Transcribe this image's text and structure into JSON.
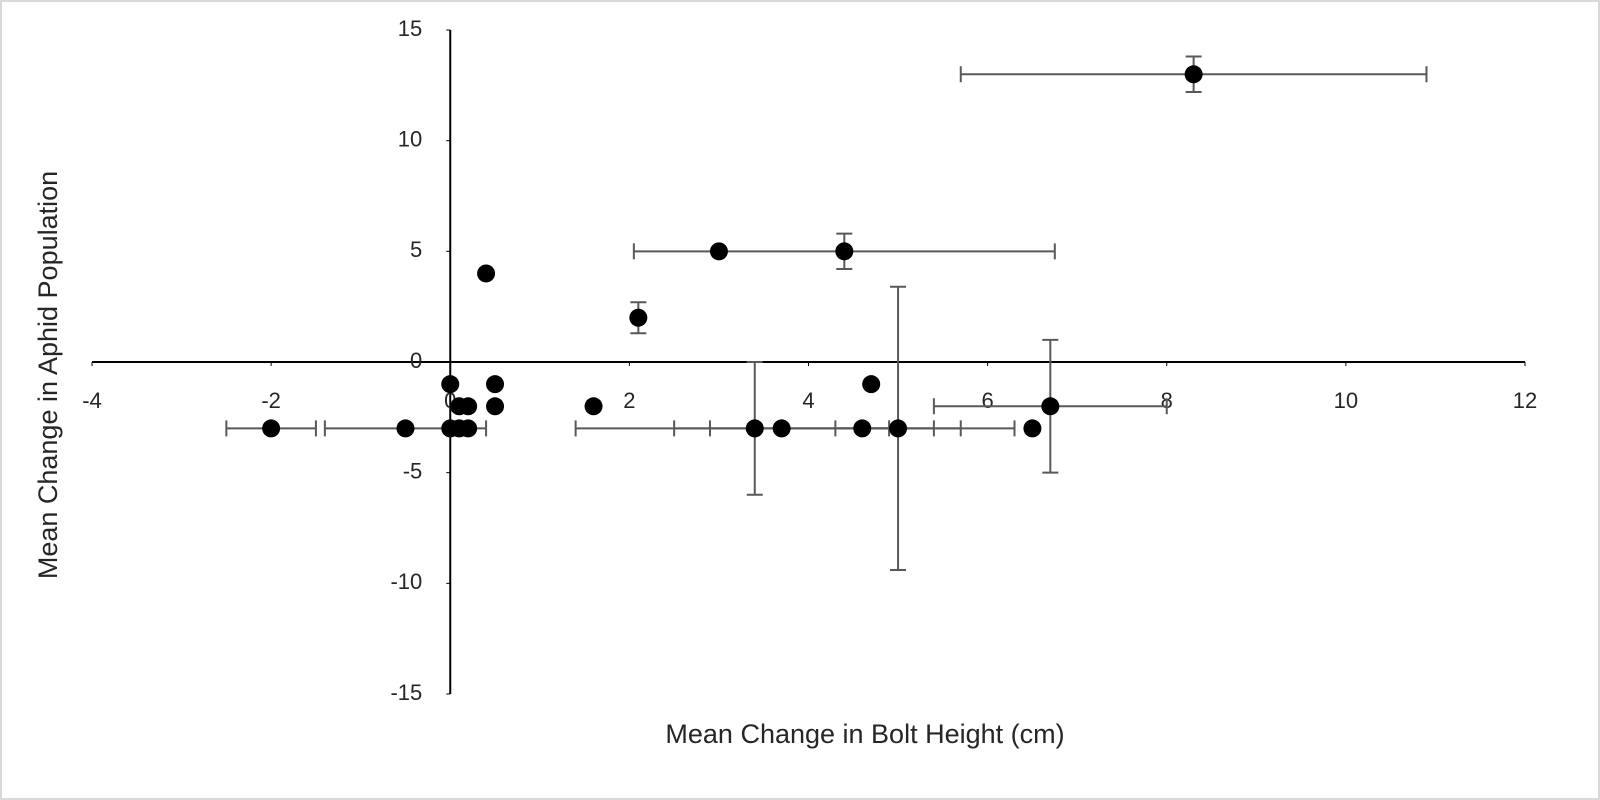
{
  "chart_data": {
    "type": "scatter",
    "x_label": "Mean Change in Bolt Height (cm)",
    "y_label": "Mean Change in Aphid Population",
    "xlim": [
      -4,
      12
    ],
    "xticks": [
      -4,
      -2,
      0,
      2,
      4,
      6,
      8,
      10,
      12
    ],
    "ylim": [
      -15,
      15
    ],
    "yticks": [
      -15,
      -10,
      -5,
      0,
      5,
      10,
      15
    ],
    "series": [
      {
        "color": "#000000",
        "error_color": "#595959",
        "x": [
          8.3,
          3.0,
          4.4,
          0.4,
          2.1,
          0,
          0.5,
          4.7,
          0.1,
          0.2,
          0.5,
          1.6,
          6.7,
          -2,
          -0.5,
          0,
          0.1,
          0.2,
          3.4,
          3.7,
          4.6,
          5.0,
          6.5
        ],
        "values": [
          13,
          5,
          5,
          4,
          2,
          -1,
          -1,
          -1,
          -2,
          -2,
          -2,
          -2,
          -2,
          -3,
          -3,
          -3,
          -3,
          -3,
          -3,
          -3,
          -3,
          -3,
          -3
        ],
        "xerr": [
          2.6,
          null,
          2.35,
          null,
          null,
          null,
          null,
          null,
          null,
          null,
          null,
          null,
          1.3,
          0.5,
          0.9,
          null,
          null,
          null,
          2.0,
          1.2,
          1.7,
          0.7,
          null
        ],
        "yerr": [
          0.8,
          null,
          0.8,
          null,
          0.7,
          null,
          null,
          null,
          null,
          null,
          null,
          null,
          3,
          null,
          null,
          null,
          null,
          null,
          3,
          null,
          null,
          6.4,
          null
        ]
      }
    ]
  }
}
